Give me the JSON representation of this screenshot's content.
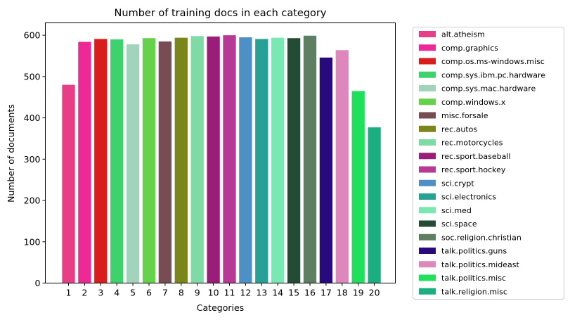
{
  "chart_data": {
    "type": "bar",
    "title": "Number of training docs in each category",
    "xlabel": "Categories",
    "ylabel": "Number of documents",
    "ylim": [
      0,
      630
    ],
    "yticks": [
      0,
      100,
      200,
      300,
      400,
      500,
      600
    ],
    "grid": false,
    "legend_position": "outside-right",
    "categories": [
      "1",
      "2",
      "3",
      "4",
      "5",
      "6",
      "7",
      "8",
      "9",
      "10",
      "11",
      "12",
      "13",
      "14",
      "15",
      "16",
      "17",
      "18",
      "19",
      "20"
    ],
    "values": [
      480,
      584,
      591,
      590,
      578,
      593,
      585,
      594,
      598,
      597,
      600,
      595,
      591,
      594,
      593,
      599,
      546,
      564,
      465,
      377
    ],
    "legend": [
      "alt.atheism",
      "comp.graphics",
      "comp.os.ms-windows.misc",
      "comp.sys.ibm.pc.hardware",
      "comp.sys.mac.hardware",
      "comp.windows.x",
      "misc.forsale",
      "rec.autos",
      "rec.motorcycles",
      "rec.sport.baseball",
      "rec.sport.hockey",
      "sci.crypt",
      "sci.electronics",
      "sci.med",
      "sci.space",
      "soc.religion.christian",
      "talk.politics.guns",
      "talk.politics.mideast",
      "talk.politics.misc",
      "talk.religion.misc"
    ],
    "colors": [
      "#e83d87",
      "#ee2896",
      "#d91c1c",
      "#3ed26c",
      "#a2d4bb",
      "#66d14a",
      "#764d53",
      "#7a8619",
      "#7edba5",
      "#9b1d7a",
      "#b73996",
      "#4e8fc6",
      "#27a095",
      "#7ae8b3",
      "#244c35",
      "#5f7f63",
      "#280a7e",
      "#dd87bd",
      "#1fe05a",
      "#1aae80"
    ]
  }
}
